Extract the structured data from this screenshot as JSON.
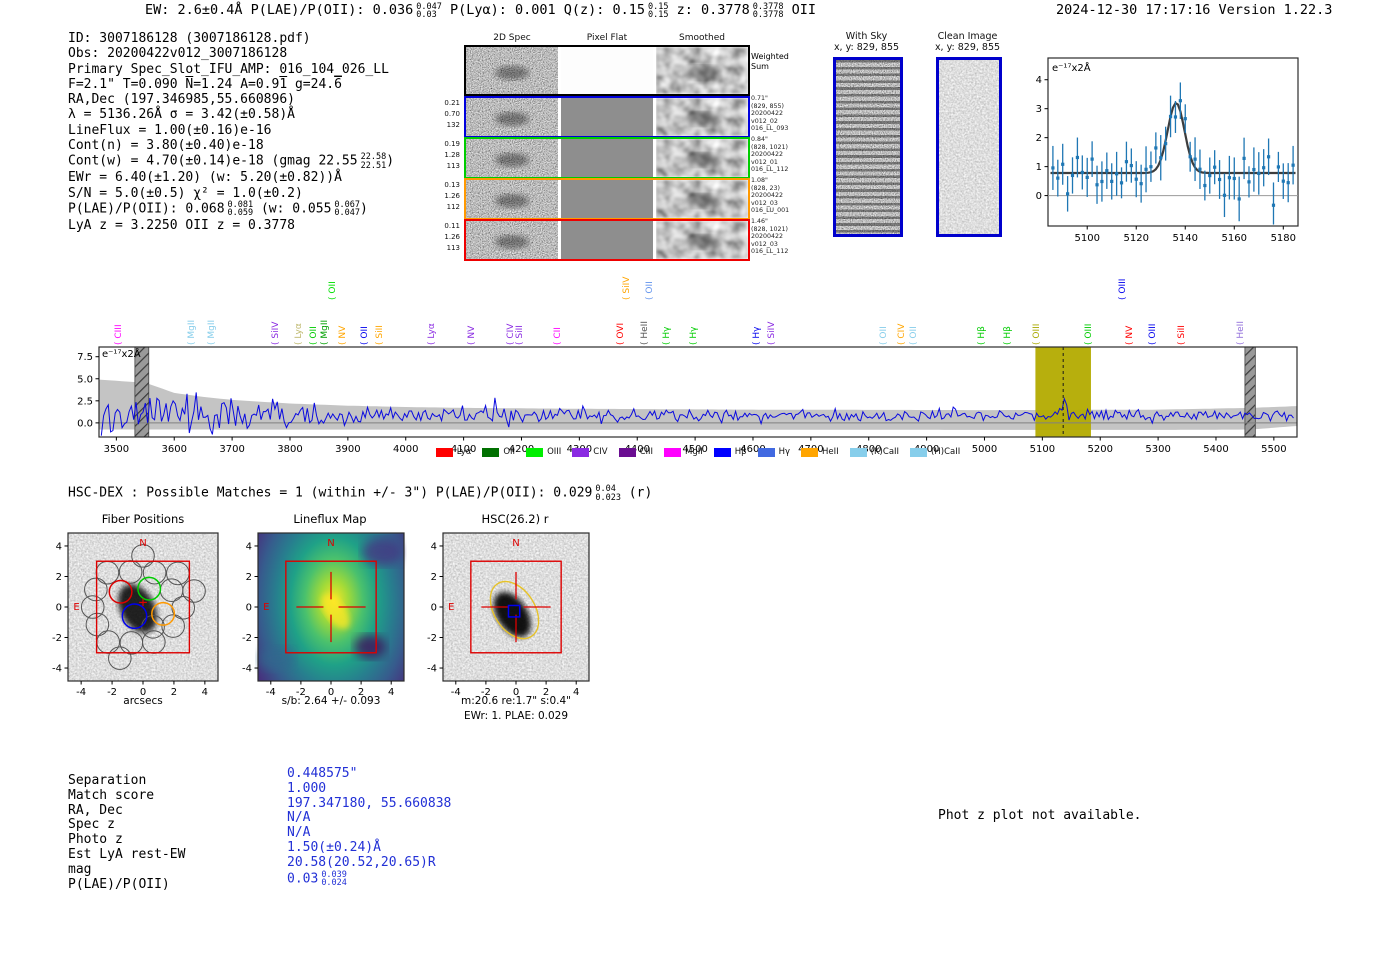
{
  "header": {
    "left_segments": [
      {
        "t": "EW: 2.6±0.4Å  P(LAE)/P(OII): 0.036"
      },
      {
        "st": [
          "0.047",
          "0.03"
        ]
      },
      {
        "t": "  P(Lyα): 0.001  Q(z): 0.15"
      },
      {
        "st": [
          "0.15",
          "0.15"
        ]
      },
      {
        "t": "  z: 0.3778"
      },
      {
        "st": [
          "0.3778",
          "0.3778"
        ]
      },
      {
        "t": " OII"
      }
    ],
    "right": "2024-12-30 17:17:16  Version 1.22.3"
  },
  "info_block": {
    "lines": [
      [
        {
          "t": "ID: 3007186128 (3007186128.pdf)"
        }
      ],
      [
        {
          "t": "Obs: 20200422v012_3007186128"
        }
      ],
      [
        {
          "t": "Primary Spec_Slot_IFU_AMP: 016_104_026_LL"
        }
      ],
      [
        {
          "t": "F=2.1\"  T=0.090  "
        },
        {
          "t": "N",
          "ov": true
        },
        {
          "t": "=1.24  A=0.9"
        },
        {
          "t": "1",
          "ov": true
        },
        {
          "t": "  g=24."
        },
        {
          "t": "6",
          "ov": true
        }
      ],
      [
        {
          "t": "RA,Dec (197.346985,55.660896)"
        }
      ],
      [
        {
          "t": "λ = 5136.26Å  σ = 3.42(±0.58)Å"
        }
      ],
      [
        {
          "t": "LineFlux = 1.00(±0.16)e-16"
        }
      ],
      [
        {
          "t": "Cont(n) = 3.80(±0.40)e-18"
        }
      ],
      [
        {
          "t": "Cont(w) = 4.70(±0.14)e-18 (gmag 22.55"
        },
        {
          "st": [
            "22.58",
            "22.51"
          ]
        },
        {
          "t": ")"
        }
      ],
      [
        {
          "t": "EWr = 6.40(±1.20) (w: 5.20(±0.82))Å"
        }
      ],
      [
        {
          "t": "S/N = 5.0(±0.5)  χ² = 1.0(±0.2)"
        }
      ],
      [
        {
          "t": "P(LAE)/P(OII): 0.068"
        },
        {
          "st": [
            "0.081",
            "0.059"
          ]
        },
        {
          "t": " (w: 0.055"
        },
        {
          "st": [
            "0.067",
            "0.047"
          ]
        },
        {
          "t": ")"
        }
      ],
      [
        {
          "t": "LyA z = 3.2250  OII z = 0.3778"
        }
      ]
    ]
  },
  "twod": {
    "col_headers": [
      "2D Spec",
      "Pixel Flat",
      "Smoothed"
    ],
    "rows": [
      {
        "border": "#000000",
        "left": [],
        "right_lines": [
          "Weighted",
          "Sum"
        ],
        "weighted": true
      },
      {
        "border": "#0000dd",
        "left": [
          "0.21",
          "0.70",
          "132"
        ],
        "right_lines": [
          "0.71\"",
          "(829, 855)",
          "20200422",
          "v012_02",
          "016_LL_093"
        ]
      },
      {
        "border": "#00cc00",
        "left": [
          "0.19",
          "1.28",
          "113"
        ],
        "right_lines": [
          "0.84\"",
          "(828, 1021)",
          "20200422",
          "v012_01",
          "016_LL_112"
        ]
      },
      {
        "border": "#ff9900",
        "left": [
          "0.13",
          "1.26",
          "112"
        ],
        "right_lines": [
          "1.08\"",
          "(828, 23)",
          "20200422",
          "v012_03",
          "016_LU_001"
        ]
      },
      {
        "border": "#ee0000",
        "left": [
          "0.11",
          "1.26",
          "113"
        ],
        "right_lines": [
          "1.46\"",
          "(828, 1021)",
          "20200422",
          "v012_03",
          "016_LL_112"
        ]
      }
    ]
  },
  "sky_panels": [
    {
      "title": "With Sky",
      "subtitle": "x, y: 829, 855",
      "banded": true
    },
    {
      "title": "Clean Image",
      "subtitle": "x, y: 829, 855",
      "banded": false
    }
  ],
  "hsc_line_segments": [
    {
      "t": "HSC-DEX : Possible Matches = 1 (within +/- 3\")  P(LAE)/P(OII): 0.029"
    },
    {
      "st": [
        "0.04",
        "0.023"
      ]
    },
    {
      "t": " (r)"
    }
  ],
  "chart_data": [
    {
      "id": "cutout_spectrum",
      "type": "scatter",
      "annotation": "e⁻¹⁷x2Å",
      "xlim": [
        5084,
        5186
      ],
      "ylim": [
        -1.05,
        4.75
      ],
      "xticks": [
        5100,
        5120,
        5140,
        5160,
        5180
      ],
      "yticks": [
        0,
        1,
        2,
        3,
        4
      ],
      "baseline": 0.78,
      "fit": {
        "center": 5136.26,
        "sigma": 3.42,
        "amplitude": 2.42
      },
      "n_points": 50,
      "noise_sd": 0.42,
      "error_bar": 0.62,
      "seed": 11,
      "point_color": "#1f77b4",
      "fit_color": "#3d3d3d"
    },
    {
      "id": "main_spectrum",
      "type": "line",
      "annotation": "e⁻¹⁷x2Å",
      "xlim": [
        3470,
        5540
      ],
      "ylim": [
        -1.6,
        8.6
      ],
      "xticks": [
        3500,
        3600,
        3700,
        3800,
        3900,
        4000,
        4100,
        4200,
        4300,
        4400,
        4500,
        4600,
        4700,
        4800,
        4900,
        5000,
        5100,
        5200,
        5300,
        5400,
        5500
      ],
      "yticks": [
        0.0,
        2.5,
        5.0,
        7.5
      ],
      "line_color": "#0a0ae0",
      "envelope_color": "#c4c4c4",
      "baseline": 0.8,
      "seed": 29,
      "peak": {
        "center": 5136,
        "sigma": 5,
        "amplitude": 1.65
      },
      "noise_amp_points": [
        [
          3470,
          2.6
        ],
        [
          3600,
          1.9
        ],
        [
          3700,
          1.6
        ],
        [
          3800,
          1.35
        ],
        [
          3900,
          1.15
        ],
        [
          4000,
          1.0
        ],
        [
          4200,
          0.85
        ],
        [
          4500,
          0.7
        ],
        [
          4800,
          0.6
        ],
        [
          5540,
          0.6
        ]
      ],
      "envelope_points": [
        [
          3470,
          4.9
        ],
        [
          3550,
          4.55
        ],
        [
          3600,
          3.4
        ],
        [
          3650,
          2.95
        ],
        [
          3700,
          2.6
        ],
        [
          3800,
          2.2
        ],
        [
          3900,
          1.95
        ],
        [
          4000,
          1.8
        ],
        [
          4100,
          1.7
        ],
        [
          4300,
          1.6
        ],
        [
          4600,
          1.5
        ],
        [
          5000,
          1.45
        ],
        [
          5300,
          1.5
        ],
        [
          5460,
          1.7
        ],
        [
          5540,
          1.9
        ]
      ],
      "envelope_bottom_points": [
        [
          3470,
          -0.75
        ],
        [
          5300,
          -0.8
        ],
        [
          5460,
          -0.75
        ],
        [
          5540,
          -0.35
        ]
      ],
      "band": {
        "x0": 5088,
        "x1": 5184,
        "color": "#b3ab00"
      },
      "dashed_x": 5136,
      "hatched_bands": [
        {
          "x0": 3532,
          "x1": 3556
        },
        {
          "x0": 5450,
          "x1": 5468
        }
      ],
      "line_labels": [
        {
          "wl": 3505,
          "text": "CIII",
          "color": "#ff00ff",
          "row": 0
        },
        {
          "wl": 3630,
          "text": "MgII",
          "color": "#87ceeb",
          "row": 0
        },
        {
          "wl": 3665,
          "text": "MgII",
          "color": "#87ceeb",
          "row": 0
        },
        {
          "wl": 3775,
          "text": "SiIV",
          "color": "#8a2be2",
          "row": 0
        },
        {
          "wl": 3815,
          "text": "Lyα",
          "color": "#bdb76b",
          "row": 0
        },
        {
          "wl": 3842,
          "text": "OII",
          "color": "#00cc00",
          "row": 0
        },
        {
          "wl": 3860,
          "text": "MgII",
          "color": "#00a000",
          "row": 0
        },
        {
          "wl": 3874,
          "text": "OII",
          "color": "#00e000",
          "row": 1
        },
        {
          "wl": 3892,
          "text": "NV",
          "color": "#ffa500",
          "row": 0
        },
        {
          "wl": 3930,
          "text": "OII",
          "color": "#0000ee",
          "row": 0
        },
        {
          "wl": 3956,
          "text": "SiII",
          "color": "#ffa500",
          "row": 0
        },
        {
          "wl": 4046,
          "text": "Lyα",
          "color": "#8a2be2",
          "row": 0
        },
        {
          "wl": 4115,
          "text": "NV",
          "color": "#8a2be2",
          "row": 0
        },
        {
          "wl": 4182,
          "text": "CIV",
          "color": "#8a2be2",
          "row": 0
        },
        {
          "wl": 4198,
          "text": "SiII",
          "color": "#8a2be2",
          "row": 0
        },
        {
          "wl": 4263,
          "text": "CII",
          "color": "#ff00ff",
          "row": 0
        },
        {
          "wl": 4372,
          "text": "OVI",
          "color": "#ff0000",
          "row": 0
        },
        {
          "wl": 4383,
          "text": "SiIV",
          "color": "#ffa500",
          "row": 1
        },
        {
          "wl": 4414,
          "text": "HeII",
          "color": "#555555",
          "row": 0
        },
        {
          "wl": 4422,
          "text": "OII",
          "color": "#6495ed",
          "row": 1
        },
        {
          "wl": 4452,
          "text": "Hγ",
          "color": "#00cc00",
          "row": 0
        },
        {
          "wl": 4498,
          "text": "Hγ",
          "color": "#00cc00",
          "row": 0
        },
        {
          "wl": 4607,
          "text": "Hγ",
          "color": "#0000ee",
          "row": 0
        },
        {
          "wl": 4633,
          "text": "SiIV",
          "color": "#8a2be2",
          "row": 0
        },
        {
          "wl": 4826,
          "text": "OII",
          "color": "#87ceeb",
          "row": 0
        },
        {
          "wl": 4858,
          "text": "CIV",
          "color": "#ffa500",
          "row": 0
        },
        {
          "wl": 4878,
          "text": "OII",
          "color": "#87ceeb",
          "row": 0
        },
        {
          "wl": 4996,
          "text": "Hβ",
          "color": "#00cc00",
          "row": 0
        },
        {
          "wl": 5040,
          "text": "Hβ",
          "color": "#00cc00",
          "row": 0
        },
        {
          "wl": 5090,
          "text": "OIII",
          "color": "#aaaa00",
          "row": 0
        },
        {
          "wl": 5180,
          "text": "OIII",
          "color": "#00cc00",
          "row": 0
        },
        {
          "wl": 5240,
          "text": "OIII",
          "color": "#0000ee",
          "row": 1
        },
        {
          "wl": 5252,
          "text": "NV",
          "color": "#ff0000",
          "row": 0
        },
        {
          "wl": 5292,
          "text": "OIII",
          "color": "#0000ee",
          "row": 0
        },
        {
          "wl": 5342,
          "text": "SiII",
          "color": "#ff0000",
          "row": 0
        },
        {
          "wl": 5444,
          "text": "HeII",
          "color": "#9370db",
          "row": 0
        }
      ],
      "legend": [
        {
          "label": "Lyα",
          "color": "#ff0000"
        },
        {
          "label": "OII",
          "color": "#007000"
        },
        {
          "label": "OIII",
          "color": "#00ee00"
        },
        {
          "label": "CIV",
          "color": "#8a2be2"
        },
        {
          "label": "CIII",
          "color": "#6a0d91"
        },
        {
          "label": "MgII",
          "color": "#ff00ff"
        },
        {
          "label": "Hβ",
          "color": "#0000ff"
        },
        {
          "label": "Hγ",
          "color": "#4169e1"
        },
        {
          "label": "HeII",
          "color": "#ffa500"
        },
        {
          "label": "(K)CaII",
          "color": "#87ceeb"
        },
        {
          "label": "(H)CaII",
          "color": "#87ceeb"
        }
      ]
    }
  ],
  "cutouts": {
    "ticks": [
      -4,
      -2,
      0,
      2,
      4
    ],
    "compass": {
      "n": "N",
      "e": "E"
    },
    "panels": [
      {
        "title": "Fiber Positions",
        "captions": [
          "arcsecs"
        ]
      },
      {
        "title": "Lineflux Map",
        "captions": [
          "s/b: 2.64 +/- 0.093"
        ]
      },
      {
        "title": "HSC(26.2) r",
        "captions": [
          "m:20.6  re:1.7\"  s:0.4\"",
          "EWr: 1. PLAE: 0.029"
        ]
      }
    ]
  },
  "match_table": {
    "rows": [
      {
        "label": "Separation",
        "value": "0.448575\""
      },
      {
        "label": "Match score",
        "value": "1.000"
      },
      {
        "label": "RA, Dec",
        "value": "197.347180, 55.660838"
      },
      {
        "label": "Spec z",
        "value": "N/A"
      },
      {
        "label": "Photo z",
        "value": "N/A"
      },
      {
        "label": "Est LyA rest-EW",
        "value": "1.50(±0.24)Å"
      },
      {
        "label": "mag",
        "value": "20.58(20.52,20.65)R"
      },
      {
        "label": "P(LAE)/P(OII)",
        "value": "0.03",
        "stack": [
          "0.039",
          "0.024"
        ]
      }
    ]
  },
  "notes": {
    "photz": "Phot z plot not available."
  }
}
